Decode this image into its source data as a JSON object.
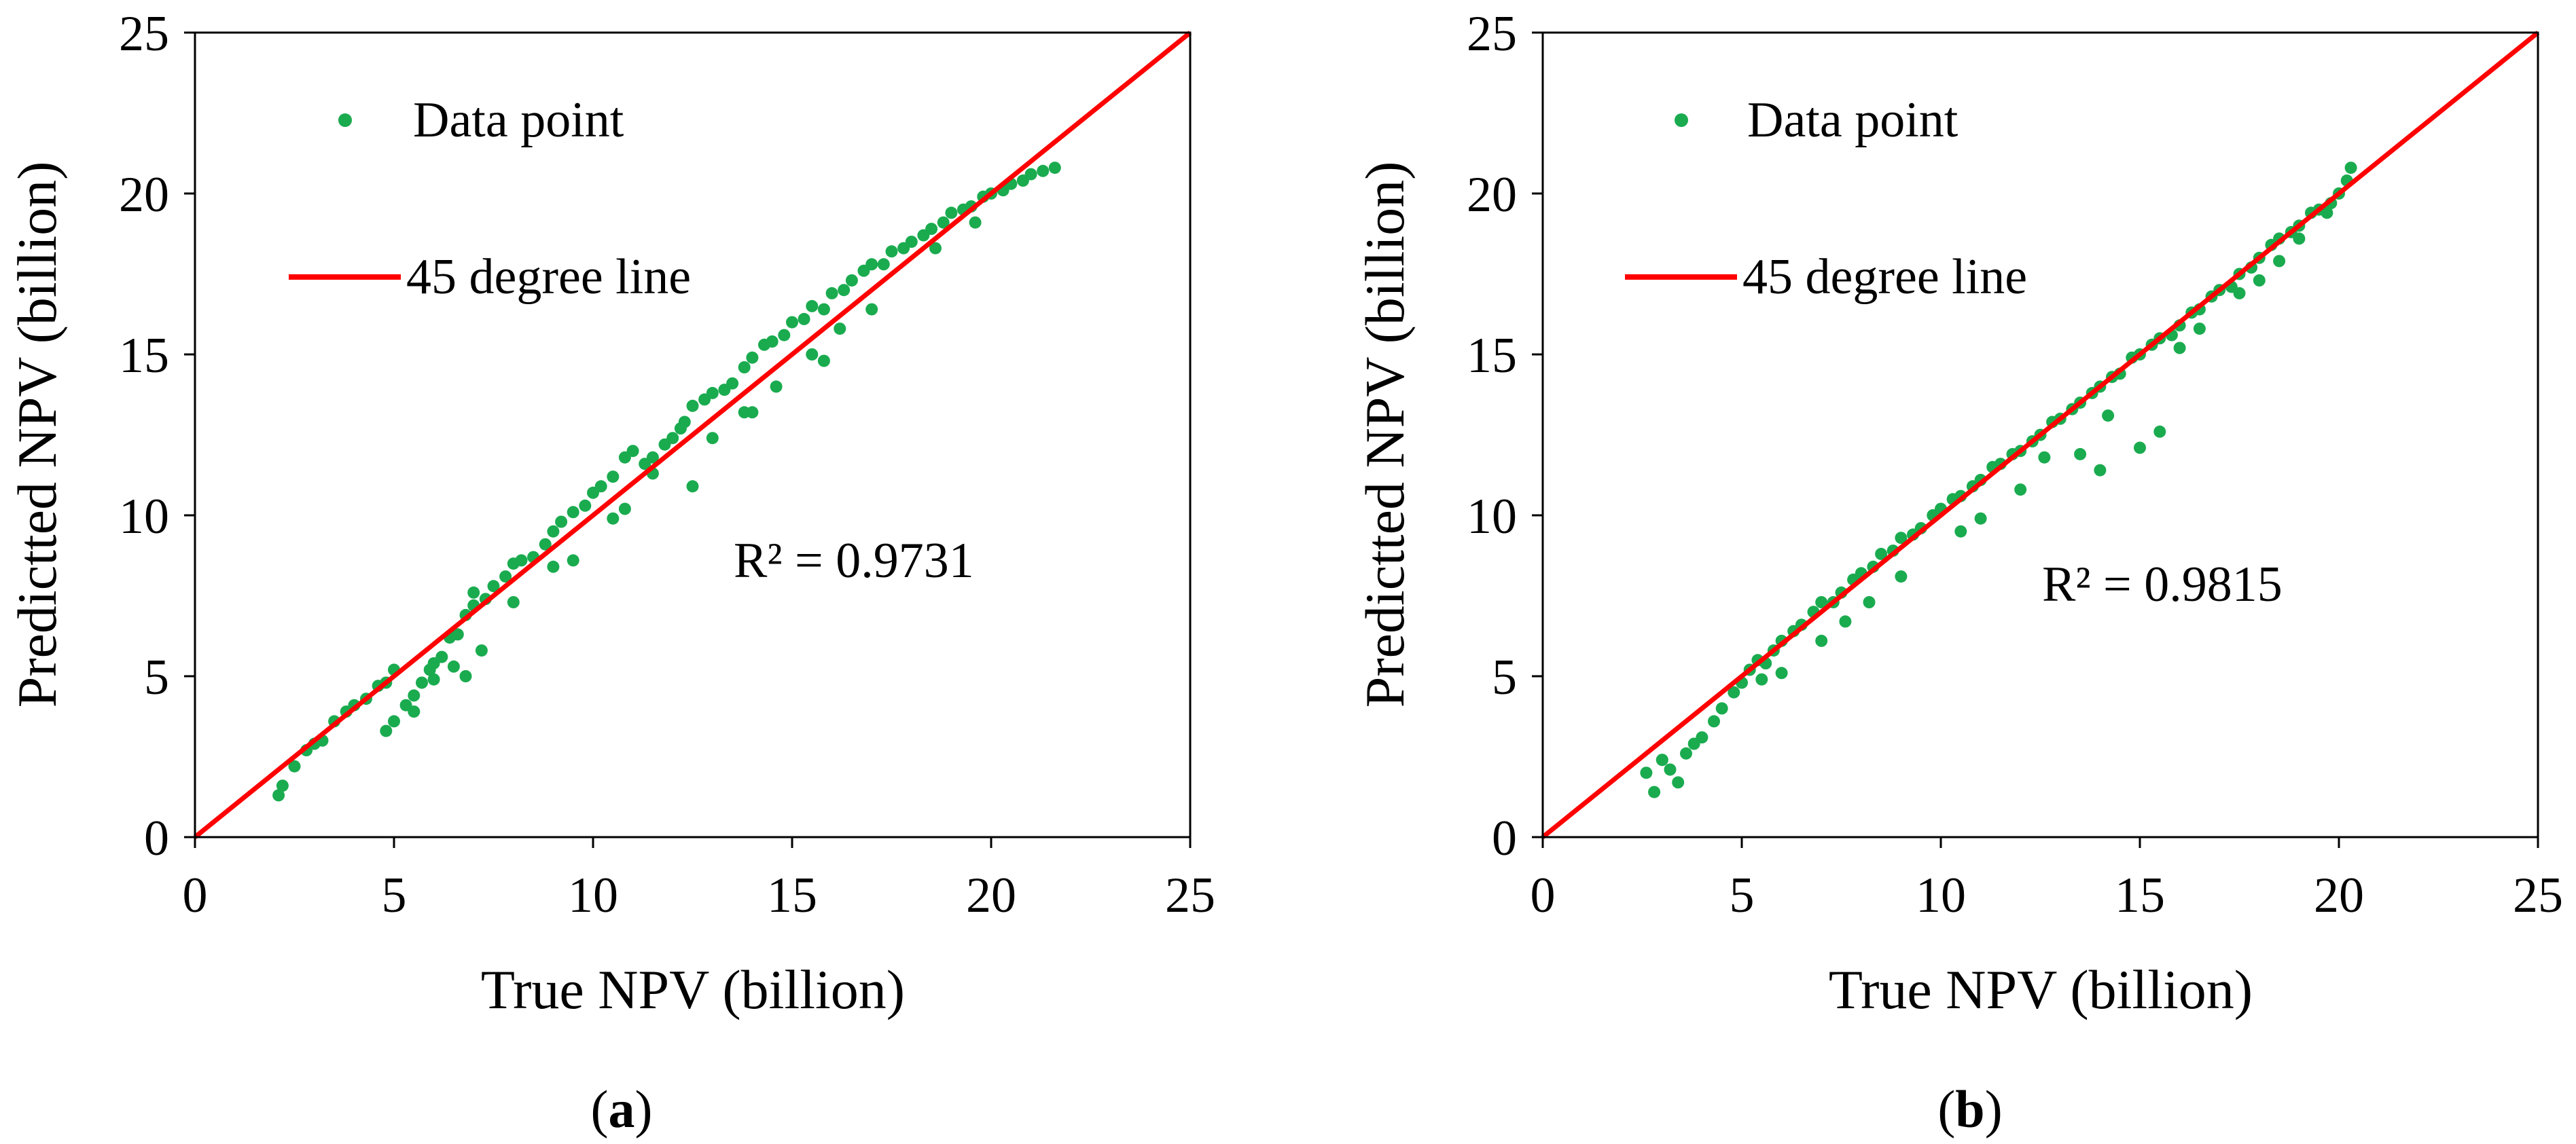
{
  "colors": {
    "point": "#1aab4f",
    "line": "#ff0000",
    "axis": "#000000"
  },
  "chart_data": [
    {
      "type": "scatter",
      "panel_label": "a",
      "xlabel": "True NPV (billion)",
      "ylabel": "Predictted NPV (billion)",
      "xlim": [
        0,
        25
      ],
      "ylim": [
        0,
        25
      ],
      "xticks": [
        0,
        5,
        10,
        15,
        20,
        25
      ],
      "yticks": [
        0,
        5,
        10,
        15,
        20,
        25
      ],
      "legend": {
        "position": "top-left",
        "point_label": "Data point",
        "line_label": "45 degree line"
      },
      "annotation": "R² = 0.9731",
      "reference_line": {
        "from": [
          0,
          0
        ],
        "to": [
          25,
          25
        ]
      },
      "series": [
        {
          "name": "Data point",
          "x": [
            2.1,
            2.2,
            2.5,
            2.8,
            3.0,
            3.2,
            3.5,
            3.8,
            4.0,
            4.3,
            4.6,
            4.8,
            5.0,
            5.0,
            5.3,
            5.5,
            5.7,
            5.9,
            6.0,
            6.2,
            6.4,
            6.6,
            6.8,
            7.0,
            7.0,
            7.3,
            7.5,
            7.8,
            8.0,
            8.2,
            8.5,
            8.8,
            9.0,
            9.2,
            9.5,
            9.8,
            10.0,
            10.2,
            10.5,
            10.8,
            11.0,
            11.3,
            11.5,
            11.8,
            12.0,
            12.3,
            12.5,
            12.8,
            13.0,
            13.3,
            13.5,
            13.8,
            14.0,
            14.3,
            14.5,
            14.8,
            15.0,
            15.3,
            15.5,
            15.8,
            16.0,
            16.3,
            16.5,
            16.8,
            17.0,
            17.3,
            17.5,
            17.8,
            18.0,
            18.3,
            18.5,
            18.8,
            19.0,
            19.3,
            19.5,
            19.8,
            20.0,
            20.3,
            20.5,
            20.8,
            21.0,
            21.3,
            21.6,
            6.0,
            6.5,
            6.8,
            7.2,
            9.0,
            10.5,
            11.5,
            12.2,
            13.0,
            13.8,
            14.6,
            15.5,
            16.2,
            17.0,
            4.8,
            5.5,
            8.0,
            9.5,
            10.8,
            12.5,
            14.0,
            15.8,
            18.6,
            19.6
          ],
          "y": [
            1.3,
            1.6,
            2.2,
            2.7,
            2.9,
            3.0,
            3.6,
            3.9,
            4.1,
            4.3,
            4.7,
            4.8,
            5.2,
            3.6,
            4.1,
            4.4,
            4.8,
            5.2,
            5.4,
            5.6,
            6.2,
            6.3,
            6.9,
            7.2,
            7.6,
            7.4,
            7.8,
            8.1,
            8.5,
            8.6,
            8.7,
            9.1,
            9.5,
            9.8,
            10.1,
            10.3,
            10.7,
            10.9,
            11.2,
            11.8,
            12.0,
            11.6,
            11.8,
            12.2,
            12.4,
            12.9,
            13.4,
            13.6,
            13.8,
            13.9,
            14.1,
            14.6,
            14.9,
            15.3,
            15.4,
            15.6,
            16.0,
            16.1,
            16.5,
            16.4,
            16.9,
            17.0,
            17.3,
            17.6,
            17.8,
            17.8,
            18.2,
            18.3,
            18.5,
            18.7,
            18.9,
            19.1,
            19.4,
            19.5,
            19.6,
            19.9,
            20.0,
            20.1,
            20.3,
            20.4,
            20.6,
            20.7,
            20.8,
            4.9,
            5.3,
            5.0,
            5.8,
            8.4,
            9.9,
            11.3,
            12.7,
            12.4,
            13.2,
            14.0,
            15.0,
            15.8,
            16.4,
            3.3,
            3.9,
            7.3,
            8.6,
            10.2,
            10.9,
            13.2,
            14.8,
            18.3,
            19.1
          ]
        }
      ]
    },
    {
      "type": "scatter",
      "panel_label": "b",
      "xlabel": "True NPV (billion)",
      "ylabel": "Predictted NPV (billion)",
      "xlim": [
        0,
        25
      ],
      "ylim": [
        0,
        25
      ],
      "xticks": [
        0,
        5,
        10,
        15,
        20,
        25
      ],
      "yticks": [
        0,
        5,
        10,
        15,
        20,
        25
      ],
      "legend": {
        "position": "top-left",
        "point_label": "Data point",
        "line_label": "45 degree line"
      },
      "annotation": "R² = 0.9815",
      "reference_line": {
        "from": [
          0,
          0
        ],
        "to": [
          25,
          25
        ]
      },
      "series": [
        {
          "name": "Data point",
          "x": [
            2.6,
            2.8,
            3.0,
            3.2,
            3.4,
            3.6,
            3.8,
            4.0,
            4.3,
            4.5,
            4.8,
            5.0,
            5.2,
            5.4,
            5.6,
            5.8,
            6.0,
            6.3,
            6.5,
            6.8,
            7.0,
            7.3,
            7.5,
            7.8,
            8.0,
            8.3,
            8.5,
            8.8,
            9.0,
            9.3,
            9.5,
            9.8,
            10.0,
            10.3,
            10.5,
            10.8,
            11.0,
            11.3,
            11.5,
            11.8,
            12.0,
            12.3,
            12.5,
            12.8,
            13.0,
            13.3,
            13.5,
            13.8,
            14.0,
            14.3,
            14.5,
            14.8,
            15.0,
            15.3,
            15.5,
            15.8,
            16.0,
            16.3,
            16.5,
            16.8,
            17.0,
            17.3,
            17.5,
            17.8,
            18.0,
            18.3,
            18.5,
            18.8,
            19.0,
            19.3,
            19.5,
            19.8,
            20.0,
            20.2,
            20.3,
            6.0,
            7.0,
            8.2,
            9.0,
            11.0,
            12.0,
            13.5,
            14.0,
            15.0,
            15.5,
            16.5,
            17.5,
            18.5,
            19.0,
            19.7,
            3.0,
            5.5,
            7.6,
            10.5,
            12.6,
            14.2,
            16.0,
            18.0
          ],
          "y": [
            2.0,
            1.4,
            2.4,
            2.1,
            1.7,
            2.6,
            2.9,
            3.1,
            3.6,
            4.0,
            4.5,
            4.8,
            5.2,
            5.5,
            5.4,
            5.8,
            6.1,
            6.4,
            6.6,
            7.0,
            7.3,
            7.3,
            7.6,
            8.0,
            8.2,
            8.4,
            8.8,
            8.9,
            9.3,
            9.4,
            9.6,
            10.0,
            10.2,
            10.5,
            10.6,
            10.9,
            11.1,
            11.5,
            11.6,
            11.9,
            12.0,
            12.3,
            12.5,
            12.9,
            13.0,
            13.3,
            13.5,
            13.8,
            14.0,
            14.3,
            14.4,
            14.9,
            15.0,
            15.3,
            15.5,
            15.6,
            15.9,
            16.3,
            16.4,
            16.8,
            17.0,
            17.1,
            17.5,
            17.7,
            18.0,
            18.4,
            18.6,
            18.8,
            19.0,
            19.4,
            19.5,
            19.7,
            20.0,
            20.4,
            20.8,
            5.1,
            6.1,
            7.3,
            8.1,
            9.9,
            10.8,
            11.9,
            11.4,
            12.1,
            12.6,
            15.8,
            16.9,
            17.9,
            18.6,
            19.4,
            2.4,
            4.9,
            6.7,
            9.5,
            11.8,
            13.1,
            15.2,
            17.3
          ]
        }
      ]
    }
  ]
}
